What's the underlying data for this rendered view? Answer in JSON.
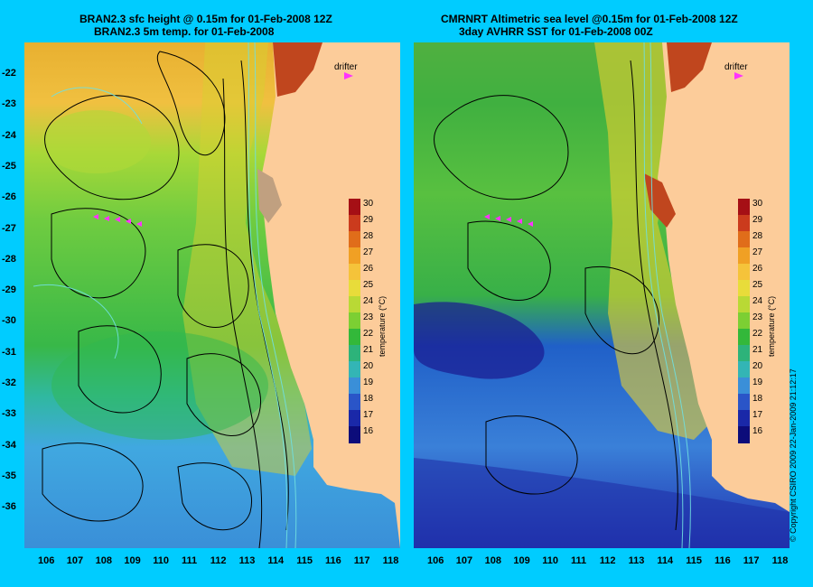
{
  "left": {
    "title_line1": "BRAN2.3 sfc height @ 0.15m for 01-Feb-2008 12Z",
    "title_line2": "BRAN2.3 5m temp. for 01-Feb-2008"
  },
  "right": {
    "title_line1": "CMRNRT Altimetric sea level  @0.15m  for 01-Feb-2008 12Z",
    "title_line2": "3day AVHRR SST for 01-Feb-2008 00Z"
  },
  "drifter_label": "drifter",
  "lat_labels": [
    "-22",
    "-23",
    "-24",
    "-25",
    "-26",
    "-27",
    "-28",
    "-29",
    "-30",
    "-31",
    "-32",
    "-33",
    "-34",
    "-35",
    "-36"
  ],
  "lon_labels": [
    "106",
    "107",
    "108",
    "109",
    "110",
    "111",
    "112",
    "113",
    "114",
    "115",
    "116",
    "117",
    "118"
  ],
  "colorbar": {
    "ticks": [
      "30",
      "29",
      "28",
      "27",
      "26",
      "25",
      "24",
      "23",
      "22",
      "21",
      "20",
      "19",
      "18",
      "17",
      "16"
    ],
    "unit": "temperature (°C)",
    "colors": [
      "#a50f15",
      "#cb3b1d",
      "#e06d1a",
      "#f0a024",
      "#f5c33a",
      "#e8dc3a",
      "#b9d935",
      "#7ccf33",
      "#33b83a",
      "#2db37a",
      "#33b5b5",
      "#3a8fd8",
      "#2a55c8",
      "#1a28a8",
      "#0c0c7a"
    ]
  },
  "copyright": "© Copyright CSIRO 2009   22-Jan-2009 21:12:17"
}
